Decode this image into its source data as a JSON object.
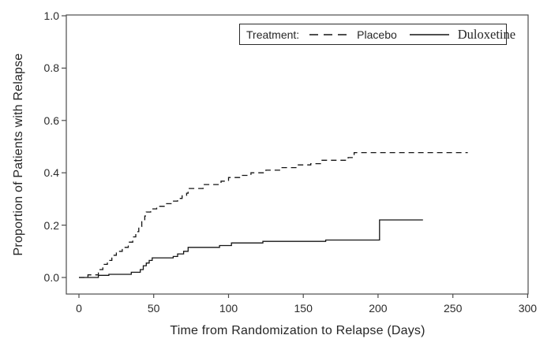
{
  "figure": {
    "background_color": "#ffffff"
  },
  "chart_data": {
    "type": "line",
    "subtype": "kaplan-meier-step",
    "title": "",
    "xlabel": "Time from Randomization to Relapse (Days)",
    "ylabel": "Proportion of Patients with Relapse",
    "xlim": [
      0,
      300
    ],
    "ylim": [
      0.0,
      1.0
    ],
    "x_ticks": [
      "0",
      "50",
      "100",
      "150",
      "200",
      "250",
      "300"
    ],
    "y_ticks": [
      "0.0",
      "0.2",
      "0.4",
      "0.6",
      "0.8",
      "1.0"
    ],
    "grid": false,
    "legend_position": "top-right-inside",
    "legend_title": "Treatment:",
    "axis_color": "#4c4c4c",
    "line_color": "#141414",
    "text_color": "#2b2b2b",
    "series": [
      {
        "name": "Placebo",
        "line_style": "dashed",
        "end_x": 260,
        "steps": [
          [
            0,
            0.0
          ],
          [
            6,
            0.01
          ],
          [
            13,
            0.03
          ],
          [
            16,
            0.05
          ],
          [
            19,
            0.065
          ],
          [
            22,
            0.085
          ],
          [
            25,
            0.1
          ],
          [
            29,
            0.115
          ],
          [
            33,
            0.135
          ],
          [
            36,
            0.155
          ],
          [
            38,
            0.175
          ],
          [
            40,
            0.195
          ],
          [
            42,
            0.215
          ],
          [
            44,
            0.235
          ],
          [
            45,
            0.25
          ],
          [
            48,
            0.262
          ],
          [
            52,
            0.272
          ],
          [
            57,
            0.282
          ],
          [
            62,
            0.292
          ],
          [
            66,
            0.302
          ],
          [
            69,
            0.312
          ],
          [
            72,
            0.322
          ],
          [
            73,
            0.34
          ],
          [
            83,
            0.355
          ],
          [
            95,
            0.368
          ],
          [
            100,
            0.382
          ],
          [
            108,
            0.39
          ],
          [
            115,
            0.4
          ],
          [
            125,
            0.41
          ],
          [
            135,
            0.42
          ],
          [
            146,
            0.43
          ],
          [
            155,
            0.435
          ],
          [
            162,
            0.448
          ],
          [
            180,
            0.458
          ],
          [
            184,
            0.477
          ]
        ]
      },
      {
        "name": "Duloxetine",
        "line_style": "solid",
        "end_x": 230,
        "steps": [
          [
            0,
            0.0
          ],
          [
            13,
            0.008
          ],
          [
            20,
            0.012
          ],
          [
            35,
            0.02
          ],
          [
            41,
            0.03
          ],
          [
            43,
            0.045
          ],
          [
            45,
            0.055
          ],
          [
            47,
            0.065
          ],
          [
            49,
            0.075
          ],
          [
            63,
            0.08
          ],
          [
            66,
            0.09
          ],
          [
            70,
            0.1
          ],
          [
            73,
            0.115
          ],
          [
            94,
            0.122
          ],
          [
            102,
            0.132
          ],
          [
            123,
            0.138
          ],
          [
            165,
            0.143
          ],
          [
            201,
            0.22
          ]
        ]
      }
    ]
  }
}
